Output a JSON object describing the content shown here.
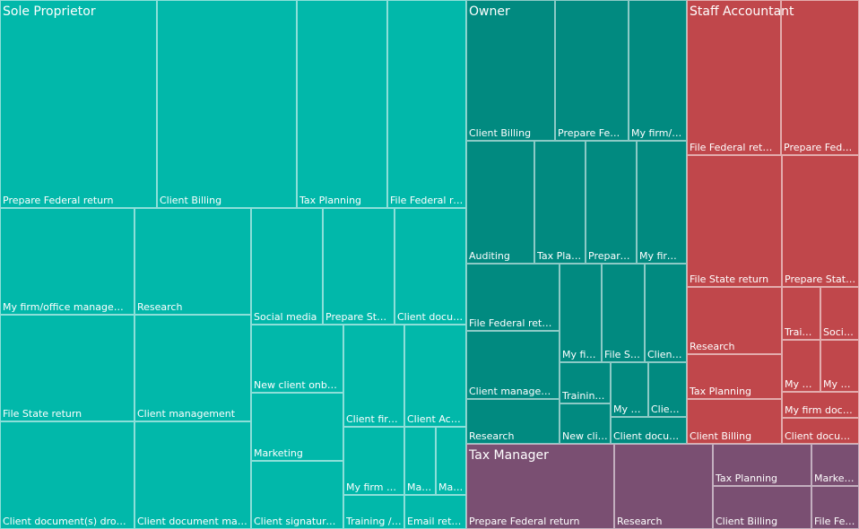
{
  "chart_data": {
    "type": "treemap",
    "title": "",
    "colors": {
      "Sole Proprietor": "#01b8aa",
      "Owner": "#018a80",
      "Staff Accountant": "#c0474b",
      "Tax Manager": "#7a4f72"
    },
    "groups": [
      {
        "name": "Sole Proprietor",
        "items": [
          {
            "label": "Prepare Federal return",
            "value": 100
          },
          {
            "label": "Client Billing",
            "value": 90
          },
          {
            "label": "Tax Planning",
            "value": 58
          },
          {
            "label": "File Federal return",
            "value": 51
          },
          {
            "label": "My firm/office management",
            "value": 56
          },
          {
            "label": "Research",
            "value": 49
          },
          {
            "label": "File State return",
            "value": 56
          },
          {
            "label": "Client management",
            "value": 49
          },
          {
            "label": "Client document(s) drop-off",
            "value": 56
          },
          {
            "label": "Client document management",
            "value": 49
          },
          {
            "label": "Social media",
            "value": 34
          },
          {
            "label": "Prepare State return",
            "value": 34
          },
          {
            "label": "Client document(s) upload",
            "value": 34
          },
          {
            "label": "New client onboarding",
            "value": 21
          },
          {
            "label": "Marketing",
            "value": 21
          },
          {
            "label": "Client signature(s)",
            "value": 21
          },
          {
            "label": "Client firm management",
            "value": 19
          },
          {
            "label": "Client Accounting",
            "value": 19
          },
          {
            "label": "My firm data",
            "value": 19
          },
          {
            "label": "Marketing",
            "value": 9
          },
          {
            "label": "Marketing",
            "value": 9
          },
          {
            "label": "Training / education",
            "value": 9
          },
          {
            "label": "Email return",
            "value": 9
          }
        ]
      },
      {
        "name": "Owner",
        "items": [
          {
            "label": "Client Billing",
            "value": 29
          },
          {
            "label": "Prepare Federal return",
            "value": 24
          },
          {
            "label": "My firm/office management",
            "value": 19
          },
          {
            "label": "Auditing",
            "value": 22
          },
          {
            "label": "Tax Planning",
            "value": 16
          },
          {
            "label": "Prepare State return",
            "value": 16
          },
          {
            "label": "My firm data",
            "value": 16
          },
          {
            "label": "File Federal return",
            "value": 17
          },
          {
            "label": "Client management",
            "value": 17
          },
          {
            "label": "Research",
            "value": 17
          },
          {
            "label": "My firm/office management",
            "value": 9
          },
          {
            "label": "File State return",
            "value": 9
          },
          {
            "label": "Client Accounting",
            "value": 9
          },
          {
            "label": "Training / education",
            "value": 6
          },
          {
            "label": "My firm data",
            "value": 6
          },
          {
            "label": "Client document(s) upload",
            "value": 6
          },
          {
            "label": "New client onboarding",
            "value": 5
          },
          {
            "label": "Client document management",
            "value": 5
          }
        ]
      },
      {
        "name": "Staff Accountant",
        "items": [
          {
            "label": "File Federal return",
            "value": 18
          },
          {
            "label": "Prepare Federal return",
            "value": 15
          },
          {
            "label": "File State return",
            "value": 16
          },
          {
            "label": "Prepare State return",
            "value": 16
          },
          {
            "label": "Research",
            "value": 8
          },
          {
            "label": "Tax Planning",
            "value": 5
          },
          {
            "label": "Client Billing",
            "value": 5
          },
          {
            "label": "Training / education",
            "value": 3
          },
          {
            "label": "Social media",
            "value": 3
          },
          {
            "label": "My firm data",
            "value": 3
          },
          {
            "label": "My firm/office management",
            "value": 3
          },
          {
            "label": "My firm document management",
            "value": 3
          },
          {
            "label": "Client document management",
            "value": 3
          }
        ]
      },
      {
        "name": "Tax Manager",
        "items": [
          {
            "label": "Prepare Federal return",
            "value": 17
          },
          {
            "label": "Research",
            "value": 11
          },
          {
            "label": "Tax Planning",
            "value": 5
          },
          {
            "label": "Client Billing",
            "value": 5
          },
          {
            "label": "Marketing",
            "value": 3
          },
          {
            "label": "File Federal return",
            "value": 3
          }
        ]
      }
    ]
  }
}
